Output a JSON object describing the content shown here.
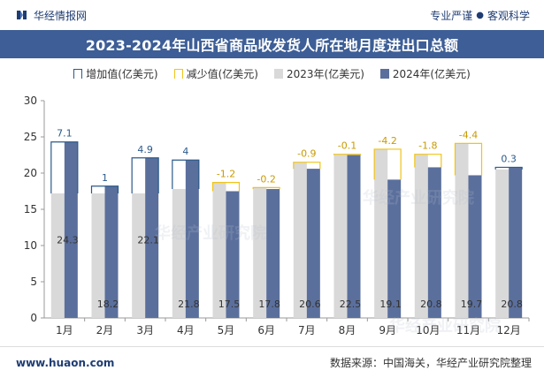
{
  "header": {
    "brand_name": "华经情报网",
    "slogan_left": "专业严谨",
    "slogan_sep": "●",
    "slogan_right": "客观科学"
  },
  "footer": {
    "site": "www.huaon.com",
    "source": "数据来源：中国海关，华经产业研究院整理"
  },
  "watermark": "华经产业研究院",
  "colors": {
    "title_band": "#3d5e96",
    "bar_2023": "#d9d9d9",
    "bar_2024": "#5a6f9c",
    "increase": "#2b5a8a",
    "decrease": "#f0c419"
  },
  "chart_data": {
    "type": "bar",
    "title": "2023-2024年山西省商品收发货人所在地月度进出口总额",
    "categories": [
      "1月",
      "2月",
      "3月",
      "4月",
      "5月",
      "6月",
      "7月",
      "8月",
      "9月",
      "10月",
      "11月",
      "12月"
    ],
    "series": [
      {
        "name": "2023年(亿美元)",
        "values": [
          17.2,
          17.2,
          17.2,
          17.8,
          18.7,
          18.0,
          21.5,
          22.6,
          23.3,
          22.6,
          24.1,
          20.5
        ]
      },
      {
        "name": "2024年(亿美元)",
        "values": [
          24.3,
          18.2,
          22.1,
          21.8,
          17.5,
          17.8,
          20.6,
          22.5,
          19.1,
          20.8,
          19.7,
          20.8
        ]
      }
    ],
    "change": {
      "increase_name": "增加值(亿美元)",
      "decrease_name": "减少值(亿美元)",
      "values": [
        7.1,
        1,
        4.9,
        4,
        -1.2,
        -0.2,
        -0.9,
        -0.1,
        -4.2,
        -1.8,
        -4.4,
        0.3
      ],
      "labels": [
        "7.1",
        "1",
        "4.9",
        "4",
        "-1.2",
        "-0.2",
        "-0.9",
        "-0.1",
        "-4.2",
        "-1.8",
        "-4.4",
        "0.3"
      ]
    },
    "value_labels_2024": [
      "24.3",
      "18.2",
      "22.1",
      "21.8",
      "17.5",
      "17.8",
      "20.6",
      "22.5",
      "19.1",
      "20.8",
      "19.7",
      "20.8"
    ],
    "ylim": [
      0,
      30
    ],
    "yticks": [
      0,
      5,
      10,
      15,
      20,
      25,
      30
    ],
    "xlabel": "",
    "ylabel": "",
    "grid": false,
    "legend_position": "top"
  }
}
